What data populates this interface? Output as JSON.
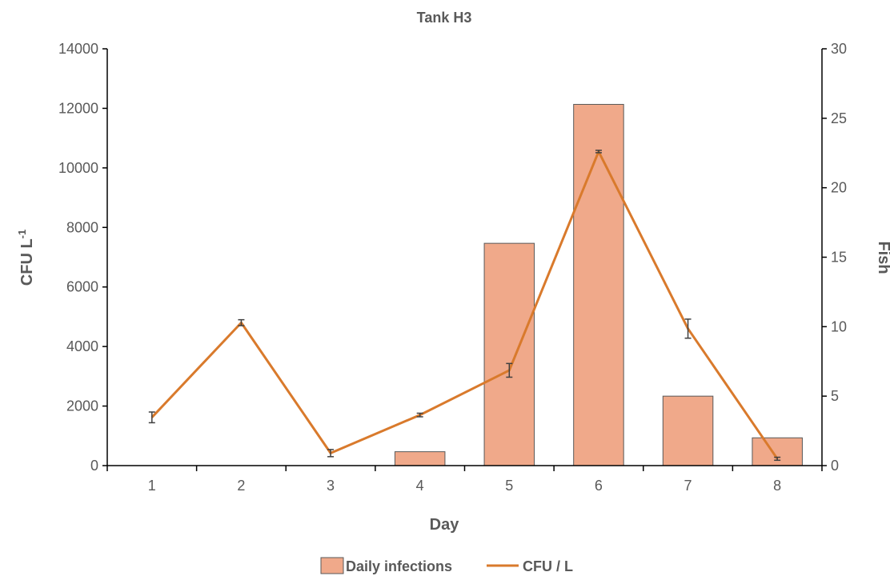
{
  "chart_data": {
    "type": "bar+line",
    "title": "Tank H3",
    "xlabel": "Day",
    "ylabel": "CFU L",
    "ylabel_sup": "-1",
    "y2label": "Fish",
    "categories": [
      "1",
      "2",
      "3",
      "4",
      "5",
      "6",
      "7",
      "8"
    ],
    "ylim": [
      0,
      14000
    ],
    "y2lim": [
      0,
      30
    ],
    "yticks": [
      "0",
      "2000",
      "4000",
      "6000",
      "8000",
      "10000",
      "12000",
      "14000"
    ],
    "y2ticks": [
      "0",
      "5",
      "10",
      "15",
      "20",
      "25",
      "30"
    ],
    "series": [
      {
        "name": "Daily infections",
        "type": "bar",
        "axis": "right",
        "color": "#f0a98a",
        "values": [
          0,
          0,
          0,
          1,
          16,
          26,
          5,
          2
        ]
      },
      {
        "name": "CFU / L",
        "type": "line",
        "axis": "left",
        "color": "#d97a2c",
        "values": [
          1620,
          4800,
          420,
          1700,
          3200,
          10550,
          4600,
          230
        ],
        "errors": [
          180,
          100,
          120,
          60,
          230,
          40,
          320,
          50
        ]
      }
    ],
    "legend_position": "bottom",
    "grid": false
  }
}
